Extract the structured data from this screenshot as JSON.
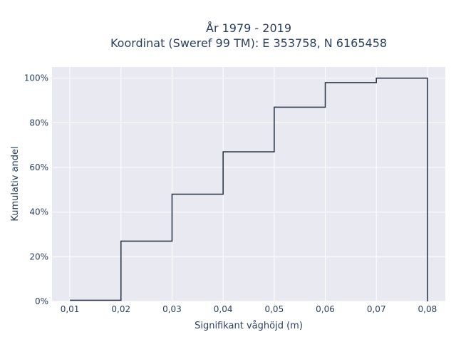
{
  "chart_data": {
    "type": "line",
    "line_shape": "step",
    "title_lines": [
      "År 1979 - 2019",
      "Koordinat (Sweref 99 TM): E 353758, N 6165458"
    ],
    "xlabel": "Signifikant våghöjd (m)",
    "ylabel": "Kumulativ andel",
    "x_ticks": [
      "0,01",
      "0,02",
      "0,03",
      "0,04",
      "0,05",
      "0,06",
      "0,07",
      "0,08"
    ],
    "y_ticks": [
      "0%",
      "20%",
      "40%",
      "60%",
      "80%",
      "100%"
    ],
    "x_range": [
      0.0065,
      0.0835
    ],
    "y_range": [
      0,
      1.05
    ],
    "grid": true,
    "x": [
      0.01,
      0.02,
      0.03,
      0.04,
      0.05,
      0.06,
      0.07,
      0.08,
      0.08
    ],
    "y": [
      0.005,
      0.27,
      0.48,
      0.67,
      0.87,
      0.98,
      1.0,
      1.0,
      0.0
    ],
    "colors": {
      "line": "#2f3b4c",
      "plot_bg": "#e9e9f1",
      "grid": "#ffffff",
      "text": "#2a3f5f"
    }
  }
}
